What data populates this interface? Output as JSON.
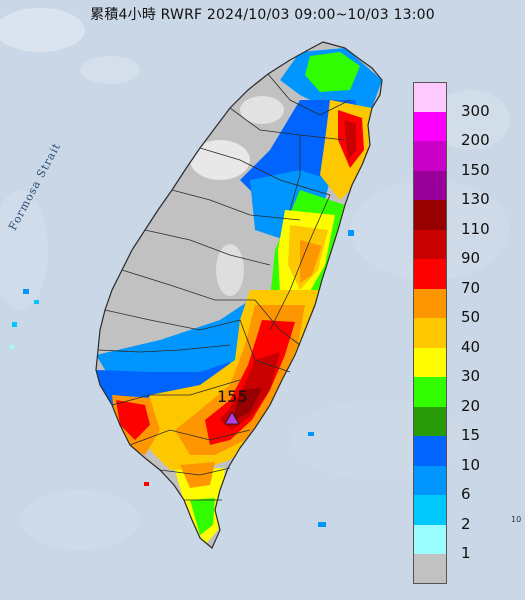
{
  "title": "累積4小時 RWRF 2024/10/03 09:00~10/03 13:00",
  "map_label_strait": "Formosa Strait",
  "edge_label": "10",
  "peak": {
    "value": "155",
    "marker_color": "#b040e0"
  },
  "legend": [
    {
      "label": "300",
      "color": "#fdcafd"
    },
    {
      "label": "200",
      "color": "#fd00fd"
    },
    {
      "label": "150",
      "color": "#c800c8"
    },
    {
      "label": "130",
      "color": "#990099"
    },
    {
      "label": "110",
      "color": "#960000"
    },
    {
      "label": "90",
      "color": "#c80000"
    },
    {
      "label": "70",
      "color": "#fd0000"
    },
    {
      "label": "50",
      "color": "#fd9600"
    },
    {
      "label": "40",
      "color": "#fdc800"
    },
    {
      "label": "30",
      "color": "#fdfd00"
    },
    {
      "label": "20",
      "color": "#32fd00"
    },
    {
      "label": "15",
      "color": "#279b08"
    },
    {
      "label": "10",
      "color": "#0064fd"
    },
    {
      "label": "6",
      "color": "#0096fd"
    },
    {
      "label": "2",
      "color": "#00c8fd"
    },
    {
      "label": "1",
      "color": "#9bfdfd"
    },
    {
      "label": "",
      "color": "#c1c1c1"
    }
  ],
  "colors": {
    "sea": "#c9d7e6",
    "land_dry": "#c1c1c1",
    "borders": "#2b2b2b"
  }
}
